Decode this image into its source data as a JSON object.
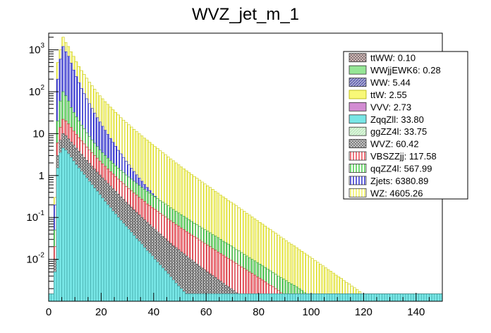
{
  "chart_data": {
    "type": "bar",
    "stacked": true,
    "title": "WVZ_jet_m_1",
    "xlabel": "",
    "ylabel": "",
    "xlim": [
      0,
      150
    ],
    "ylim": [
      0.001,
      2500
    ],
    "log_y": true,
    "grid": false,
    "legend_position": "top-right",
    "x_ticks": [
      0,
      20,
      40,
      60,
      80,
      100,
      120,
      140
    ],
    "y_ticks": [
      {
        "value": 0.01,
        "base": "10",
        "exp": "-2"
      },
      {
        "value": 0.1,
        "base": "10",
        "exp": "-1"
      },
      {
        "value": 1,
        "base": "1",
        "exp": ""
      },
      {
        "value": 10,
        "base": "10",
        "exp": ""
      },
      {
        "value": 100,
        "base": "10",
        "exp": "2"
      },
      {
        "value": 1000,
        "base": "10",
        "exp": "3"
      }
    ],
    "series": [
      {
        "name": "ttWW",
        "total": "0.10",
        "color": "#c89696",
        "hatch": "cross"
      },
      {
        "name": "WWjjEWK6",
        "total": "0.28",
        "color": "#96e696",
        "hatch": "none"
      },
      {
        "name": "WW",
        "total": "5.44",
        "color": "#4646a0",
        "hatch": "diag"
      },
      {
        "name": "ttW",
        "total": "2.55",
        "color": "#f8f878",
        "hatch": "none"
      },
      {
        "name": "VVV",
        "total": "2.73",
        "color": "#d28cd2",
        "hatch": "none"
      },
      {
        "name": "ZqqZll",
        "total": "33.80",
        "color": "#78e6e6",
        "hatch": "none"
      },
      {
        "name": "ggZZ4l",
        "total": "33.75",
        "color": "#b4e6b4",
        "hatch": "diag"
      },
      {
        "name": "WVZ",
        "total": "60.42",
        "color": "#aaaaaa",
        "hatch": "cross"
      },
      {
        "name": "VBSZZjj",
        "total": "117.58",
        "color": "#e63c46",
        "hatch": "vert"
      },
      {
        "name": "qqZZ4l",
        "total": "567.99",
        "color": "#3cc83c",
        "hatch": "vert"
      },
      {
        "name": "Zjets",
        "total": "6380.89",
        "color": "#1e1ec8",
        "hatch": "vert"
      },
      {
        "name": "WZ",
        "total": "4605.26",
        "color": "#f0f050",
        "hatch": "vert"
      }
    ],
    "total_stack_top": [
      0.0015,
      0.0015,
      0.3,
      500,
      1000,
      2000,
      1500,
      1200,
      900,
      700,
      520,
      400,
      320,
      260,
      210,
      170,
      140,
      115,
      95,
      80,
      68,
      58,
      50,
      43,
      37,
      32,
      28,
      24,
      21,
      18.5,
      16.3,
      14.4,
      12.7,
      11.2,
      9.9,
      8.8,
      7.8,
      7.0,
      6.2,
      5.5,
      4.9,
      4.4,
      3.9,
      3.5,
      3.15,
      2.8,
      2.5,
      2.25,
      2.0,
      1.8,
      1.6,
      1.45,
      1.3,
      1.17,
      1.05,
      0.95,
      0.86,
      0.78,
      0.7,
      0.63,
      0.57,
      0.52,
      0.47,
      0.42,
      0.38,
      0.34,
      0.31,
      0.28,
      0.25,
      0.23,
      0.21,
      0.19,
      0.17,
      0.155,
      0.14,
      0.126,
      0.114,
      0.103,
      0.093,
      0.084,
      0.076,
      0.069,
      0.062,
      0.056,
      0.051,
      0.046,
      0.042,
      0.038,
      0.034,
      0.031,
      0.028,
      0.025,
      0.023,
      0.021,
      0.019,
      0.017,
      0.0155,
      0.014,
      0.0127,
      0.0115,
      0.0104,
      0.0094,
      0.0085,
      0.0077,
      0.007,
      0.0063,
      0.0057,
      0.0052,
      0.0047,
      0.0042,
      0.0038,
      0.0035,
      0.0031,
      0.0028,
      0.0026,
      0.0023,
      0.0021,
      0.0019,
      0.0017,
      0.0015,
      0.0015,
      0.0015,
      0.0015,
      0.0015,
      0.0015,
      0.0015,
      0.0015,
      0.0015,
      0.0015,
      0.0015,
      0.0015,
      0.0015,
      0.0015,
      0.0015,
      0.0015,
      0.0015,
      0.0015,
      0.0015,
      0.0015,
      0.0015,
      0.0015,
      0.0015,
      0.0015,
      0.0015,
      0.0015,
      0.0015,
      0.0015,
      0.0015,
      0.0015,
      0.0015
    ],
    "zjets_top": [
      0.0015,
      0.0015,
      0.2,
      200,
      600,
      1200,
      900,
      700,
      480,
      330,
      230,
      165,
      120,
      90,
      68,
      52,
      40,
      31,
      24,
      19,
      15,
      12,
      9.6,
      7.7,
      6.2,
      5.0,
      4.0,
      3.3,
      2.7,
      2.2,
      1.8,
      1.5,
      1.25,
      1.04,
      0.87,
      0.73,
      0.61,
      0.52,
      0.44,
      0.37,
      0.32,
      0.27,
      0.23,
      0.2,
      0.17,
      0.15,
      0.13,
      0.11,
      0.097,
      0.085,
      0.074,
      0.065,
      0.057,
      0.05,
      0.044,
      0.039,
      0.035,
      0.031,
      0.027,
      0.024,
      0.022,
      0.019,
      0.017,
      0.015,
      0.014,
      0.012,
      0.011,
      0.0098,
      0.0088,
      0.0079,
      0.0071,
      0.0064,
      0.0057,
      0.0051,
      0.0046,
      0.0041,
      0.0037,
      0.0033,
      0.003,
      0.0027,
      0.0024,
      0.0022,
      0.002,
      0.0018,
      0.0016,
      0.0015,
      0.0015,
      0.0015,
      0.0015,
      0.0015,
      0.0015,
      0.0015,
      0.0015,
      0.0015,
      0.0015,
      0.0015,
      0.0015,
      0.0015,
      0.0015,
      0.0015,
      0.0015,
      0.0015,
      0.0015,
      0.0015,
      0.0015,
      0.0015,
      0.0015,
      0.0015,
      0.0015,
      0.0015,
      0.0015,
      0.0015,
      0.0015,
      0.0015,
      0.0015,
      0.0015,
      0.0015,
      0.0015,
      0.0015,
      0.0015,
      0.0015,
      0.0015,
      0.0015,
      0.0015,
      0.0015,
      0.0015,
      0.0015,
      0.0015,
      0.0015,
      0.0015,
      0.0015,
      0.0015,
      0.0015,
      0.0015,
      0.0015,
      0.0015,
      0.0015,
      0.0015,
      0.0015,
      0.0015,
      0.0015,
      0.0015,
      0.0015,
      0.0015,
      0.0015,
      0.0015,
      0.0015,
      0.0015,
      0.0015,
      0.0015,
      0.0015,
      0.0015
    ],
    "qqzz_top": [
      0.0015,
      0.0015,
      0.05,
      20,
      60,
      100,
      80,
      60,
      42,
      32,
      25,
      20,
      16,
      13,
      10.5,
      8.6,
      7.1,
      5.9,
      4.9,
      4.1,
      3.5,
      3.0,
      2.6,
      2.25,
      1.95,
      1.7,
      1.5,
      1.32,
      1.17,
      1.03,
      0.92,
      0.82,
      0.73,
      0.65,
      0.58,
      0.52,
      0.47,
      0.42,
      0.38,
      0.34,
      0.31,
      0.28,
      0.25,
      0.23,
      0.21,
      0.19,
      0.17,
      0.155,
      0.14,
      0.128,
      0.116,
      0.106,
      0.097,
      0.088,
      0.08,
      0.073,
      0.067,
      0.061,
      0.056,
      0.051,
      0.047,
      0.043,
      0.039,
      0.036,
      0.033,
      0.03,
      0.027,
      0.025,
      0.023,
      0.021,
      0.019,
      0.017,
      0.016,
      0.0145,
      0.0132,
      0.012,
      0.011,
      0.01,
      0.0092,
      0.0084,
      0.0077,
      0.007,
      0.0064,
      0.0058,
      0.0053,
      0.0048,
      0.0044,
      0.004,
      0.0037,
      0.0034,
      0.0031,
      0.0028,
      0.0026,
      0.0024,
      0.0022,
      0.002,
      0.0018,
      0.0016,
      0.0015,
      0.0015,
      0.0015,
      0.0015,
      0.0015,
      0.0015,
      0.0015,
      0.0015,
      0.0015,
      0.0015,
      0.0015,
      0.0015,
      0.0015,
      0.0015,
      0.0015,
      0.0015,
      0.0015,
      0.0015,
      0.0015,
      0.0015,
      0.0015,
      0.0015,
      0.0015,
      0.0015,
      0.0015,
      0.0015,
      0.0015,
      0.0015,
      0.0015,
      0.0015,
      0.0015,
      0.0015,
      0.0015,
      0.0015,
      0.0015,
      0.0015,
      0.0015,
      0.0015,
      0.0015,
      0.0015,
      0.0015,
      0.0015,
      0.0015,
      0.0015,
      0.0015,
      0.0015,
      0.0015,
      0.0015,
      0.0015,
      0.0015,
      0.0015,
      0.0015
    ],
    "vbs_top": [
      0.0015,
      0.0015,
      0.02,
      6,
      14,
      22,
      20,
      17,
      14,
      11.5,
      9.5,
      8.0,
      6.7,
      5.7,
      4.8,
      4.1,
      3.5,
      3.0,
      2.6,
      2.2,
      1.9,
      1.65,
      1.43,
      1.24,
      1.08,
      0.94,
      0.82,
      0.72,
      0.63,
      0.55,
      0.49,
      0.43,
      0.38,
      0.34,
      0.3,
      0.27,
      0.24,
      0.21,
      0.19,
      0.17,
      0.155,
      0.14,
      0.125,
      0.113,
      0.102,
      0.092,
      0.083,
      0.075,
      0.068,
      0.062,
      0.056,
      0.051,
      0.046,
      0.042,
      0.038,
      0.035,
      0.032,
      0.029,
      0.026,
      0.024,
      0.022,
      0.02,
      0.018,
      0.0165,
      0.015,
      0.0137,
      0.0125,
      0.0114,
      0.0104,
      0.0095,
      0.0087,
      0.0079,
      0.0072,
      0.0066,
      0.006,
      0.0055,
      0.005,
      0.0046,
      0.0042,
      0.0038,
      0.0035,
      0.0032,
      0.0029,
      0.0026,
      0.0024,
      0.0022,
      0.002,
      0.0018,
      0.0016,
      0.0015,
      0.0015,
      0.0015,
      0.0015,
      0.0015,
      0.0015,
      0.0015,
      0.0015,
      0.0015,
      0.0015,
      0.0015,
      0.0015,
      0.0015,
      0.0015,
      0.0015,
      0.0015,
      0.0015,
      0.0015,
      0.0015,
      0.0015,
      0.0015,
      0.0015,
      0.0015,
      0.0015,
      0.0015,
      0.0015,
      0.0015,
      0.0015,
      0.0015,
      0.0015,
      0.0015,
      0.0015,
      0.0015,
      0.0015,
      0.0015,
      0.0015,
      0.0015,
      0.0015,
      0.0015,
      0.0015,
      0.0015,
      0.0015,
      0.0015,
      0.0015,
      0.0015,
      0.0015,
      0.0015,
      0.0015,
      0.0015,
      0.0015,
      0.0015,
      0.0015,
      0.0015,
      0.0015,
      0.0015,
      0.0015,
      0.0015,
      0.0015,
      0.0015,
      0.0015,
      0.0015
    ],
    "wvz_top": [
      0.0015,
      0.0015,
      0.01,
      3,
      7,
      10,
      9,
      7.5,
      6.3,
      5.3,
      4.5,
      3.8,
      3.2,
      2.7,
      2.3,
      1.95,
      1.66,
      1.42,
      1.21,
      1.03,
      0.88,
      0.76,
      0.65,
      0.56,
      0.48,
      0.42,
      0.36,
      0.31,
      0.27,
      0.23,
      0.2,
      0.175,
      0.152,
      0.132,
      0.115,
      0.1,
      0.088,
      0.077,
      0.067,
      0.059,
      0.052,
      0.045,
      0.04,
      0.035,
      0.031,
      0.027,
      0.024,
      0.021,
      0.019,
      0.017,
      0.015,
      0.0135,
      0.012,
      0.0107,
      0.0096,
      0.0086,
      0.0077,
      0.0069,
      0.0062,
      0.0056,
      0.005,
      0.0045,
      0.0041,
      0.0037,
      0.0033,
      0.003,
      0.0027,
      0.0024,
      0.0022,
      0.002,
      0.0018,
      0.0016,
      0.0015,
      0.0015,
      0.0015,
      0.0015,
      0.0015,
      0.0015,
      0.0015,
      0.0015,
      0.0015,
      0.0015,
      0.0015,
      0.0015,
      0.0015,
      0.0015,
      0.0015,
      0.0015,
      0.0015,
      0.0015,
      0.0015,
      0.0015,
      0.0015,
      0.0015,
      0.0015,
      0.0015,
      0.0015,
      0.0015,
      0.0015,
      0.0015,
      0.0015,
      0.0015,
      0.0015,
      0.0015,
      0.0015,
      0.0015,
      0.0015,
      0.0015,
      0.0015,
      0.0015,
      0.0015,
      0.0015,
      0.0015,
      0.0015,
      0.0015,
      0.0015,
      0.0015,
      0.0015,
      0.0015,
      0.0015,
      0.0015,
      0.0015,
      0.0015,
      0.0015,
      0.0015,
      0.0015,
      0.0015,
      0.0015,
      0.0015,
      0.0015,
      0.0015,
      0.0015,
      0.0015,
      0.0015,
      0.0015,
      0.0015,
      0.0015,
      0.0015,
      0.0015,
      0.0015,
      0.0015,
      0.0015,
      0.0015,
      0.0015,
      0.0015,
      0.0015,
      0.0015,
      0.0015,
      0.0015,
      0.0015,
      0.0015,
      0.0015
    ],
    "zqq_top": [
      0.0015,
      0.0015,
      0.005,
      1.5,
      3.5,
      4.5,
      4,
      3.3,
      2.7,
      2.2,
      1.8,
      1.5,
      1.25,
      1.05,
      0.87,
      0.72,
      0.6,
      0.5,
      0.42,
      0.35,
      0.29,
      0.24,
      0.2,
      0.17,
      0.14,
      0.12,
      0.1,
      0.085,
      0.072,
      0.061,
      0.052,
      0.044,
      0.037,
      0.031,
      0.027,
      0.023,
      0.019,
      0.016,
      0.014,
      0.012,
      0.01,
      0.0086,
      0.0073,
      0.0062,
      0.0053,
      0.0045,
      0.0038,
      0.0032,
      0.0027,
      0.0023,
      0.002,
      0.0017,
      0.0015,
      0.0015,
      0.0015,
      0.0015,
      0.0015,
      0.0015,
      0.0015,
      0.0015,
      0.0015,
      0.0015,
      0.0015,
      0.0015,
      0.0015,
      0.0015,
      0.0015,
      0.0015,
      0.0015,
      0.0015,
      0.0015,
      0.0015,
      0.0015,
      0.0015,
      0.0015,
      0.0015,
      0.0015,
      0.0015,
      0.0015,
      0.0015,
      0.0015,
      0.0015,
      0.0015,
      0.0015,
      0.0015,
      0.0015,
      0.0015,
      0.0015,
      0.0015,
      0.0015,
      0.0015,
      0.0015,
      0.0015,
      0.0015,
      0.0015,
      0.0015,
      0.0015,
      0.0015,
      0.0015,
      0.0015,
      0.0015,
      0.0015,
      0.0015,
      0.0015,
      0.0015,
      0.0015,
      0.0015,
      0.0015,
      0.0015,
      0.0015,
      0.0015,
      0.0015,
      0.0015,
      0.0015,
      0.0015,
      0.0015,
      0.0015,
      0.0015,
      0.0015,
      0.0015,
      0.0015,
      0.0015,
      0.0015,
      0.0015,
      0.0015,
      0.0015,
      0.0015,
      0.0015,
      0.0015,
      0.0015,
      0.0015,
      0.0015,
      0.0015,
      0.0015,
      0.0015,
      0.0015,
      0.0015,
      0.0015,
      0.0015,
      0.0015,
      0.0015,
      0.0015,
      0.0015,
      0.0015,
      0.0015,
      0.0015,
      0.0015,
      0.0015,
      0.0015,
      0.0015,
      0.0015,
      0.0015,
      0.0015,
      0.0015
    ]
  }
}
